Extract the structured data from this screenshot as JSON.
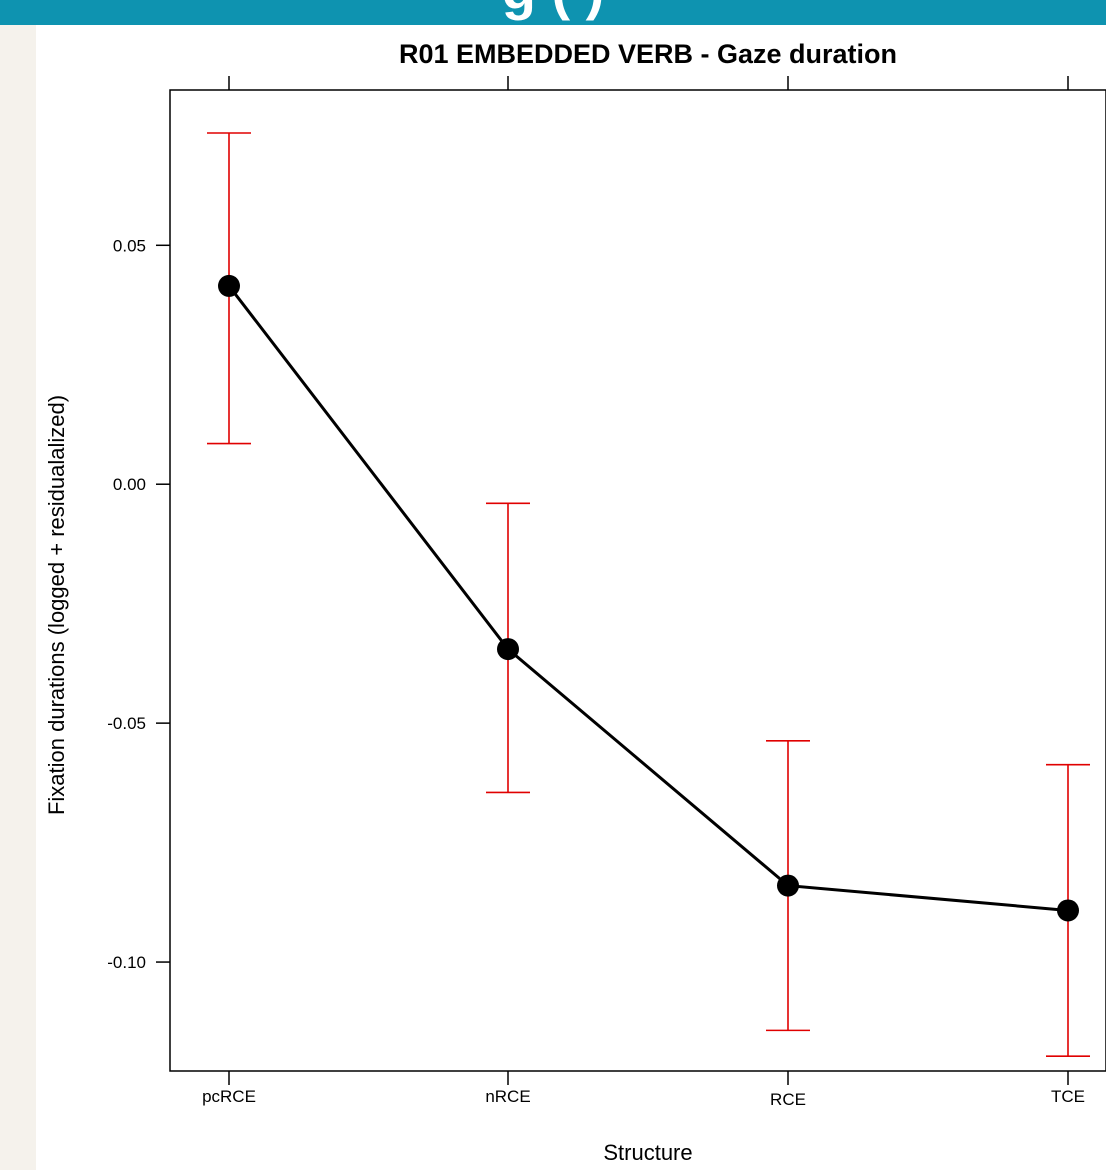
{
  "banner": {
    "text": "g     (     )",
    "background_color": "#0e93b0",
    "text_color": "#ffffff"
  },
  "page": {
    "left_margin_color": "#f5f2ec"
  },
  "chart_data": {
    "type": "line",
    "title": "R01 EMBEDDED VERB - Gaze duration",
    "xlabel": "Structure",
    "ylabel": "Fixation durations (logged + residualalized)",
    "categories": [
      "pcRCE",
      "nRCE",
      "RCE",
      "TCE"
    ],
    "values": [
      0.0415,
      -0.0345,
      -0.084,
      -0.0892
    ],
    "error_upper": [
      0.0735,
      -0.004,
      -0.0537,
      -0.0587
    ],
    "error_lower": [
      0.0085,
      -0.0645,
      -0.1143,
      -0.1197
    ],
    "ylim": [
      -0.1228,
      0.0825
    ],
    "yticks": [
      -0.1,
      -0.05,
      0.0,
      0.05
    ],
    "ytick_labels": [
      "-0.10",
      "-0.05",
      "0.00",
      "0.05"
    ],
    "grid": false,
    "line_color": "#000000",
    "error_bar_color": "#e00000",
    "marker_color": "#000000"
  }
}
